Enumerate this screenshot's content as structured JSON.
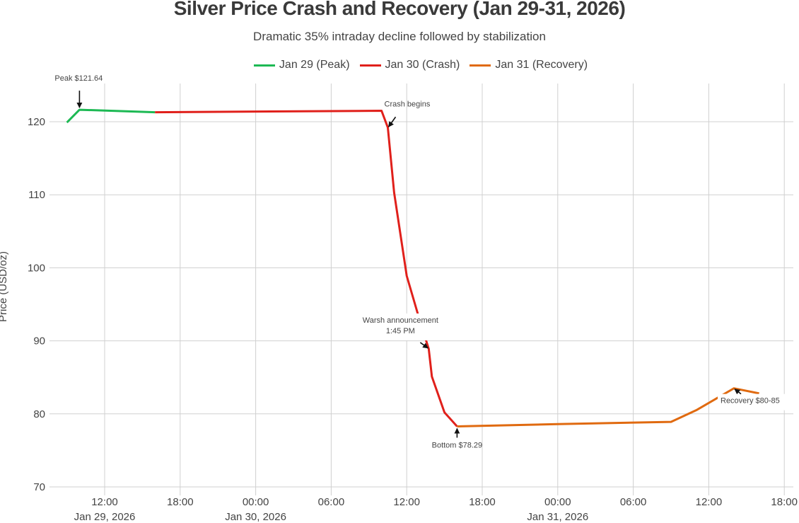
{
  "chart_data": {
    "type": "line",
    "title": "Silver Price Crash and Recovery (Jan 29-31, 2026)",
    "subtitle": "Dramatic 35% intraday decline followed by stabilization",
    "xlabel": "",
    "ylabel": "Price (USD/oz)",
    "ylim": [
      70,
      124
    ],
    "grid": true,
    "legend_placement": "top-center",
    "y_ticks": [
      "70",
      "80",
      "90",
      "100",
      "110",
      "120"
    ],
    "x_ticks": [
      {
        "hour": 12,
        "label": "12:00",
        "date": "Jan 29, 2026"
      },
      {
        "hour": 18,
        "label": "18:00",
        "date": ""
      },
      {
        "hour": 24,
        "label": "00:00",
        "date": "Jan 30, 2026"
      },
      {
        "hour": 30,
        "label": "06:00",
        "date": ""
      },
      {
        "hour": 36,
        "label": "12:00",
        "date": ""
      },
      {
        "hour": 42,
        "label": "18:00",
        "date": ""
      },
      {
        "hour": 48,
        "label": "00:00",
        "date": "Jan 31, 2026"
      },
      {
        "hour": 54,
        "label": "06:00",
        "date": ""
      },
      {
        "hour": 60,
        "label": "12:00",
        "date": ""
      },
      {
        "hour": 66,
        "label": "18:00",
        "date": ""
      }
    ],
    "x_units": "hours since Jan 29, 2026 00:00",
    "series": [
      {
        "name": "Jan 29 (Peak)",
        "color": "#1db954",
        "x": [
          9,
          10,
          16
        ],
        "y": [
          119.9,
          121.64,
          121.3
        ]
      },
      {
        "name": "Jan 30 (Crash)",
        "color": "#e0201b",
        "x": [
          16,
          34,
          34.5,
          35,
          36,
          37,
          37.75,
          38,
          39,
          40
        ],
        "y": [
          121.3,
          121.5,
          119.2,
          110.3,
          98.9,
          93.0,
          88.9,
          85.1,
          80.2,
          78.29
        ]
      },
      {
        "name": "Jan 31 (Recovery)",
        "color": "#e06a10",
        "x": [
          40,
          48,
          57,
          59,
          62,
          64
        ],
        "y": [
          78.29,
          78.6,
          78.9,
          80.5,
          83.5,
          82.8
        ]
      }
    ],
    "annotations": [
      {
        "id": "peak",
        "lines": [
          "Peak $121.64"
        ],
        "x": 10,
        "y": 121.64
      },
      {
        "id": "crash",
        "lines": [
          "Crash begins"
        ],
        "x": 34.5,
        "y": 119.2
      },
      {
        "id": "warsh",
        "lines": [
          "Warsh announcement",
          "1:45 PM"
        ],
        "x": 37.75,
        "y": 88.9
      },
      {
        "id": "bottom",
        "lines": [
          "Bottom $78.29"
        ],
        "x": 40,
        "y": 78.29
      },
      {
        "id": "recovery",
        "lines": [
          "Recovery $80-85"
        ],
        "x": 62,
        "y": 83.5
      }
    ]
  }
}
